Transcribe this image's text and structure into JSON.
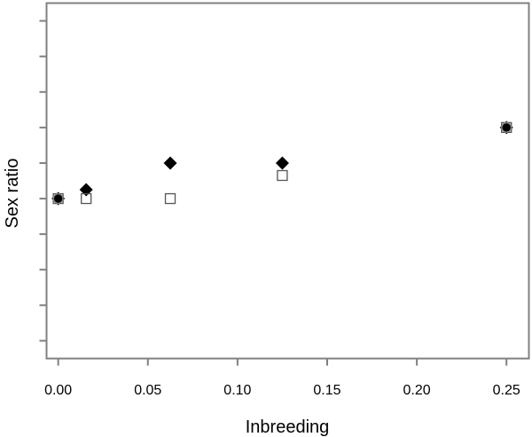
{
  "chart_data": {
    "type": "scatter",
    "title": "",
    "xlabel": "Inbreeding",
    "ylabel": "Sex ratio",
    "xlim": [
      -0.0065,
      0.2625
    ],
    "ylim": [
      0.48,
      0.58
    ],
    "x_ticks": [
      0.0,
      0.05,
      0.1,
      0.15,
      0.2,
      0.25
    ],
    "x_tick_labels": [
      "0.00",
      "0.05",
      "0.10",
      "0.15",
      "0.20",
      "0.25"
    ],
    "y_ticks": [
      0.485,
      0.495,
      0.505,
      0.515,
      0.525,
      0.535,
      0.545,
      0.555,
      0.565,
      0.575
    ],
    "y_tick_labels": [
      "",
      "",
      "",
      "",
      "",
      "",
      "",
      "",
      "",
      ""
    ],
    "grid": false,
    "legend": "none",
    "series": [
      {
        "marker": "filled-diamond",
        "color": "#000000",
        "points": [
          {
            "x": 0.0,
            "y": 0.525
          },
          {
            "x": 0.0156,
            "y": 0.5275
          },
          {
            "x": 0.0625,
            "y": 0.535
          },
          {
            "x": 0.125,
            "y": 0.535
          },
          {
            "x": 0.25,
            "y": 0.545
          }
        ]
      },
      {
        "marker": "open-square",
        "color": "#555555",
        "points": [
          {
            "x": 0.0,
            "y": 0.525
          },
          {
            "x": 0.0156,
            "y": 0.525
          },
          {
            "x": 0.0625,
            "y": 0.525
          },
          {
            "x": 0.125,
            "y": 0.5315
          },
          {
            "x": 0.25,
            "y": 0.545
          }
        ]
      },
      {
        "marker": "open-circle",
        "color": "#888888",
        "points": [
          {
            "x": 0.0,
            "y": 0.525
          },
          {
            "x": 0.25,
            "y": 0.545
          }
        ]
      }
    ]
  }
}
